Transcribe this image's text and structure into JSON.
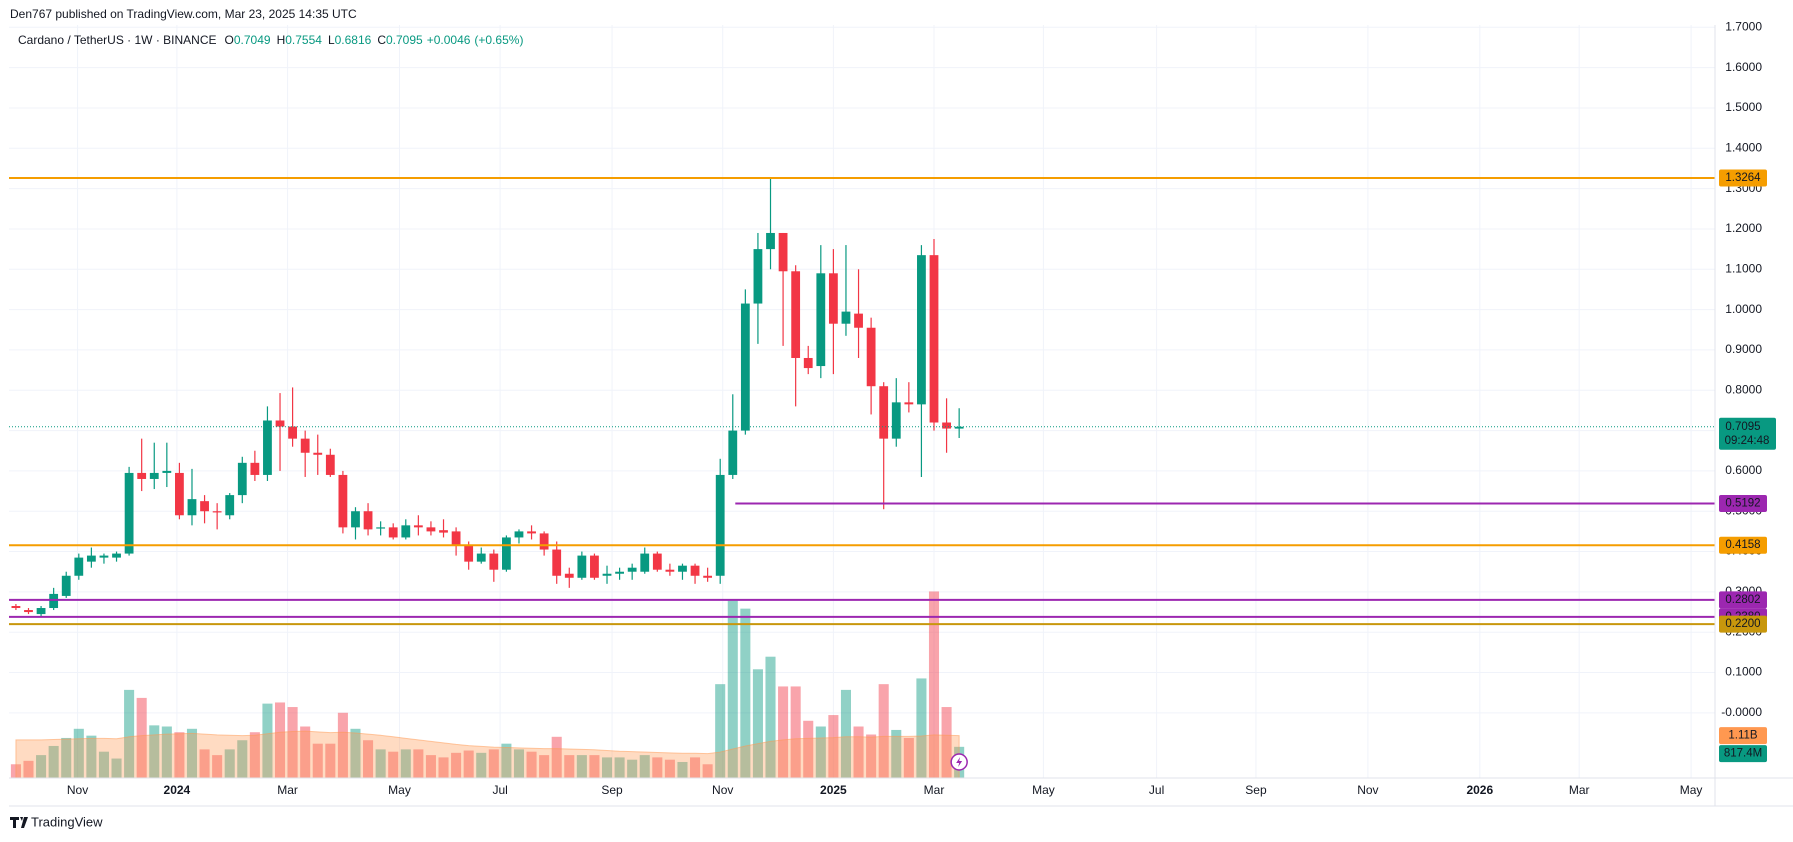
{
  "chart_data": {
    "type": "candlestick",
    "published": "Den767 published on TradingView.com, Mar 23, 2025 14:35 UTC",
    "brand": "TradingView",
    "legend": {
      "symbol": "Cardano / TetherUS · 1W · BINANCE",
      "labels": [
        "O",
        "H",
        "L",
        "C"
      ],
      "change": "+0.0046",
      "change_pct": "(+0.65%)"
    },
    "up_color": "#089981",
    "down_color": "#f23645",
    "categories": [
      null,
      null,
      null,
      null,
      null,
      null,
      null,
      null,
      null,
      null,
      null,
      null,
      null,
      null,
      null,
      null,
      null,
      null,
      null,
      null,
      null,
      null,
      null,
      null,
      null,
      null,
      null,
      null,
      null,
      null,
      null,
      null,
      null,
      null,
      null,
      null,
      null,
      null,
      null,
      null,
      null,
      null,
      null,
      null,
      null,
      null,
      null,
      null,
      null,
      null,
      null,
      null,
      null,
      null,
      null,
      null,
      null,
      null,
      null,
      null,
      null,
      null,
      null,
      null,
      null,
      null,
      null,
      null,
      null,
      null,
      null,
      null,
      null,
      null,
      null,
      null
    ],
    "open": [
      0.265,
      0.255,
      0.245,
      0.26,
      0.29,
      0.34,
      0.375,
      0.385,
      0.385,
      0.395,
      0.595,
      0.58,
      0.595,
      0.595,
      0.49,
      0.525,
      0.5,
      0.49,
      0.54,
      0.62,
      0.59,
      0.725,
      0.71,
      0.68,
      0.645,
      0.64,
      0.59,
      0.46,
      0.5,
      0.457,
      0.46,
      0.435,
      0.465,
      0.46,
      0.453,
      0.45,
      0.415,
      0.375,
      0.395,
      0.355,
      0.435,
      0.45,
      0.445,
      0.405,
      0.345,
      0.335,
      0.39,
      0.34,
      0.345,
      0.35,
      0.35,
      0.395,
      0.355,
      0.35,
      0.365,
      0.34,
      0.34,
      0.59,
      0.7,
      1.015,
      1.15,
      1.19,
      1.095,
      0.88,
      0.86,
      1.09,
      0.965,
      0.99,
      0.955,
      0.81,
      0.68,
      0.77,
      0.765,
      1.135,
      0.72,
      0.7049
    ],
    "high": [
      0.27,
      0.26,
      0.265,
      0.31,
      0.35,
      0.395,
      0.41,
      0.395,
      0.4,
      0.61,
      0.68,
      0.67,
      0.67,
      0.62,
      0.605,
      0.54,
      0.52,
      0.545,
      0.635,
      0.65,
      0.76,
      0.793,
      0.807,
      0.7,
      0.69,
      0.655,
      0.6,
      0.51,
      0.52,
      0.475,
      0.47,
      0.48,
      0.49,
      0.475,
      0.48,
      0.46,
      0.425,
      0.41,
      0.405,
      0.44,
      0.455,
      0.465,
      0.45,
      0.425,
      0.36,
      0.4,
      0.395,
      0.365,
      0.36,
      0.37,
      0.41,
      0.4,
      0.37,
      0.37,
      0.37,
      0.36,
      0.63,
      0.79,
      1.05,
      1.19,
      1.325,
      1.19,
      1.11,
      0.91,
      1.16,
      1.15,
      1.16,
      1.1,
      0.98,
      0.82,
      0.83,
      0.82,
      1.16,
      1.175,
      0.78,
      0.7554
    ],
    "low": [
      0.255,
      0.245,
      0.24,
      0.255,
      0.285,
      0.33,
      0.36,
      0.37,
      0.375,
      0.39,
      0.55,
      0.555,
      0.56,
      0.48,
      0.465,
      0.47,
      0.455,
      0.48,
      0.52,
      0.575,
      0.575,
      0.6,
      0.66,
      0.585,
      0.59,
      0.585,
      0.445,
      0.43,
      0.44,
      0.44,
      0.43,
      0.43,
      0.44,
      0.44,
      0.435,
      0.39,
      0.355,
      0.37,
      0.325,
      0.35,
      0.42,
      0.43,
      0.39,
      0.32,
      0.31,
      0.33,
      0.33,
      0.32,
      0.33,
      0.33,
      0.345,
      0.35,
      0.34,
      0.33,
      0.32,
      0.325,
      0.32,
      0.58,
      0.69,
      0.915,
      1.1,
      0.91,
      0.76,
      0.84,
      0.83,
      0.84,
      0.935,
      0.88,
      0.74,
      0.505,
      0.66,
      0.745,
      0.585,
      0.7,
      0.645,
      0.6816
    ],
    "close": [
      0.26,
      0.25,
      0.26,
      0.295,
      0.34,
      0.385,
      0.39,
      0.39,
      0.395,
      0.595,
      0.58,
      0.595,
      0.6,
      0.49,
      0.53,
      0.5,
      0.497,
      0.54,
      0.62,
      0.59,
      0.725,
      0.71,
      0.68,
      0.645,
      0.64,
      0.59,
      0.46,
      0.5,
      0.455,
      0.46,
      0.435,
      0.465,
      0.46,
      0.45,
      0.447,
      0.415,
      0.375,
      0.395,
      0.355,
      0.435,
      0.45,
      0.445,
      0.405,
      0.34,
      0.335,
      0.39,
      0.335,
      0.345,
      0.35,
      0.36,
      0.395,
      0.355,
      0.35,
      0.365,
      0.34,
      0.335,
      0.59,
      0.7,
      1.015,
      1.15,
      1.19,
      1.095,
      0.88,
      0.855,
      1.09,
      0.965,
      0.995,
      0.955,
      0.81,
      0.68,
      0.77,
      0.765,
      1.135,
      0.72,
      0.705,
      0.7095
    ],
    "volume": [
      360,
      450,
      600,
      840,
      1050,
      1290,
      1110,
      690,
      510,
      2310,
      2100,
      1380,
      1350,
      1200,
      1290,
      750,
      600,
      750,
      990,
      1200,
      1950,
      1980,
      1860,
      1350,
      900,
      900,
      1710,
      1290,
      990,
      750,
      690,
      750,
      750,
      600,
      540,
      660,
      720,
      660,
      750,
      900,
      750,
      690,
      600,
      1080,
      600,
      600,
      600,
      540,
      540,
      480,
      600,
      540,
      480,
      420,
      540,
      360,
      2460,
      4650,
      4440,
      2850,
      3180,
      2400,
      2400,
      1500,
      1350,
      1650,
      2310,
      1350,
      1140,
      2460,
      1260,
      1050,
      2610,
      4890,
      1860,
      817.4
    ],
    "volume_ma": [
      1000,
      1000,
      1000,
      1010,
      1020,
      1030,
      1040,
      1040,
      1030,
      1080,
      1110,
      1130,
      1150,
      1160,
      1170,
      1150,
      1130,
      1120,
      1110,
      1120,
      1160,
      1200,
      1220,
      1230,
      1210,
      1190,
      1200,
      1180,
      1150,
      1120,
      1080,
      1040,
      1000,
      960,
      920,
      880,
      850,
      830,
      810,
      800,
      790,
      780,
      770,
      770,
      760,
      750,
      740,
      720,
      700,
      690,
      680,
      670,
      660,
      650,
      650,
      640,
      680,
      760,
      840,
      900,
      960,
      1000,
      1030,
      1040,
      1050,
      1060,
      1080,
      1080,
      1070,
      1090,
      1090,
      1090,
      1100,
      1130,
      1120,
      1110
    ],
    "volume_last_label": "817.4M",
    "volume_ma_last_label": "1.11B",
    "volume_ma_color": "#ff9850",
    "volume_lim": [
      0,
      19740
    ],
    "countdown": "09:24:48",
    "xlim": [
      -0.55,
      135.1
    ],
    "xticks": [
      {
        "value": 4.9,
        "label": "Nov"
      },
      {
        "value": 12.8,
        "label": "2024"
      },
      {
        "value": 21.6,
        "label": "Mar"
      },
      {
        "value": 30.5,
        "label": "May"
      },
      {
        "value": 38.5,
        "label": "Jul"
      },
      {
        "value": 47.4,
        "label": "Sep"
      },
      {
        "value": 56.2,
        "label": "Nov"
      },
      {
        "value": 65.0,
        "label": "2025"
      },
      {
        "value": 73.0,
        "label": "Mar"
      },
      {
        "value": 81.7,
        "label": "May"
      },
      {
        "value": 90.7,
        "label": "Jul"
      },
      {
        "value": 98.6,
        "label": "Sep"
      },
      {
        "value": 107.5,
        "label": "Nov"
      },
      {
        "value": 116.4,
        "label": "2026"
      },
      {
        "value": 124.3,
        "label": "Mar"
      },
      {
        "value": 133.2,
        "label": "May"
      }
    ],
    "ylim": [
      -0.1615,
      1.7057
    ],
    "yticks": [
      {
        "value": 0,
        "label": "-0.0000"
      },
      {
        "value": 0.1,
        "label": "0.1000"
      },
      {
        "value": 0.2,
        "label": "0.2000"
      },
      {
        "value": 0.3,
        "label": "0.3000"
      },
      {
        "value": 0.4,
        "label": "0.4000"
      },
      {
        "value": 0.5,
        "label": "0.5000"
      },
      {
        "value": 0.6,
        "label": "0.6000"
      },
      {
        "value": 0.7,
        "label": "0.7000"
      },
      {
        "value": 0.8,
        "label": "0.8000"
      },
      {
        "value": 0.9,
        "label": "0.9000"
      },
      {
        "value": 1.0,
        "label": "1.0000"
      },
      {
        "value": 1.1,
        "label": "1.1000"
      },
      {
        "value": 1.2,
        "label": "1.2000"
      },
      {
        "value": 1.3,
        "label": "1.3000"
      },
      {
        "value": 1.4,
        "label": "1.4000"
      },
      {
        "value": 1.5,
        "label": "1.5000"
      },
      {
        "value": 1.6,
        "label": "1.6000"
      },
      {
        "value": 1.7,
        "label": "1.7000"
      }
    ],
    "grid": true,
    "levels": [
      {
        "value": 1.3264,
        "color": "#f59d00",
        "text_color": "#131722"
      },
      {
        "value": 0.5192,
        "color": "#9c27b0",
        "text_color": "#ffffff",
        "x_start": 57.2
      },
      {
        "value": 0.4158,
        "color": "#f59d00",
        "text_color": "#131722"
      },
      {
        "value": 0.2802,
        "color": "#9c27b0",
        "text_color": "#ffffff"
      },
      {
        "value": 0.238,
        "label": "0.2380",
        "color": "#9c27b0",
        "text_color": "#ffffff"
      },
      {
        "value": 0.22,
        "label": "0.2200",
        "color": "#c8970c",
        "text_color": "#ffffff"
      }
    ]
  }
}
